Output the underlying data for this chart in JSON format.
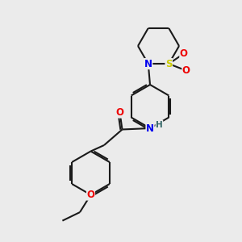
{
  "bg_color": "#ebebeb",
  "bond_color": "#1a1a1a",
  "atom_colors": {
    "N": "#0000ee",
    "O": "#ee0000",
    "S": "#cccc00",
    "H": "#336666",
    "C": "#1a1a1a"
  },
  "lw": 1.5,
  "font_size": 8.5
}
